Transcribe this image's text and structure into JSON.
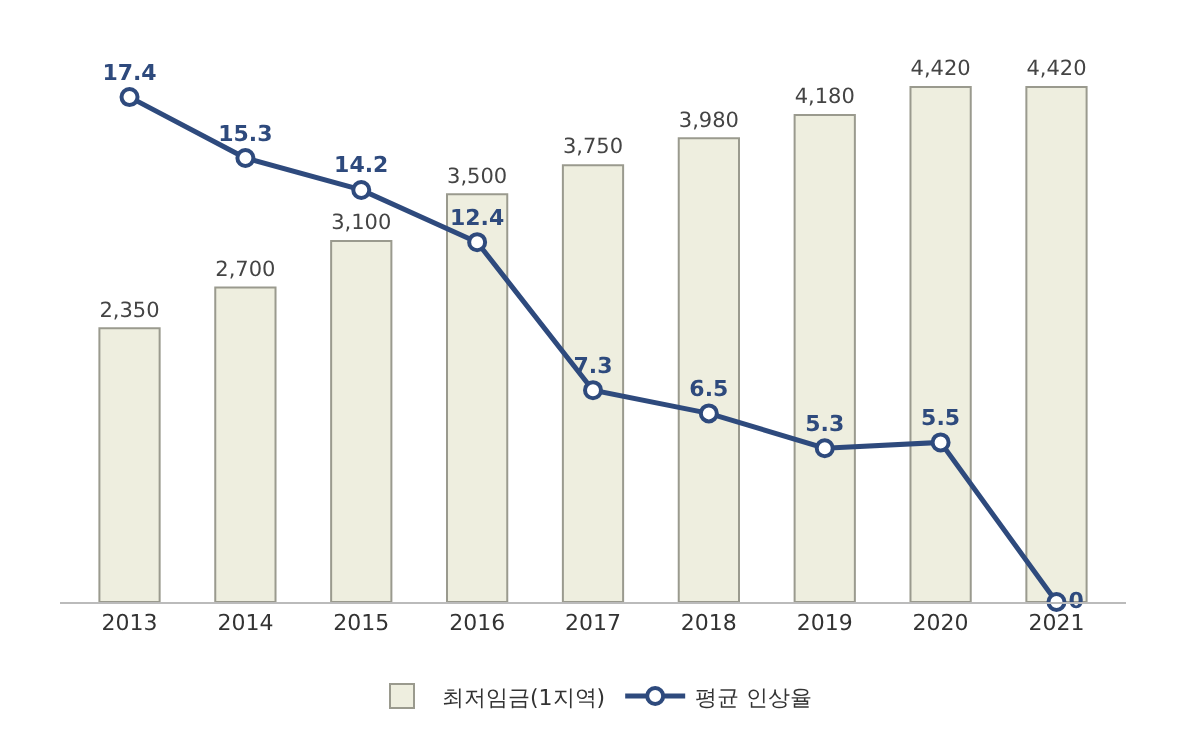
{
  "chart_data": {
    "type": "bar",
    "categories": [
      "2013",
      "2014",
      "2015",
      "2016",
      "2017",
      "2018",
      "2019",
      "2020",
      "2021"
    ],
    "series": [
      {
        "name": "최저임금(1지역)",
        "color": "#eeeedf",
        "value_labels": [
          "2,350",
          "2,700",
          "3,100",
          "3,500",
          "3,750",
          "3,980",
          "4,180",
          "4,420",
          "4,420"
        ],
        "values": [
          2350,
          2700,
          3100,
          3500,
          3750,
          3980,
          4180,
          4420,
          4420
        ]
      },
      {
        "name": "평균 인상율",
        "type": "line",
        "axis": "y2",
        "color": "#2e4a7d",
        "marker": "circle",
        "line_style": "solid",
        "values": [
          17.4,
          15.3,
          14.2,
          12.4,
          7.3,
          6.5,
          5.3,
          5.5,
          0
        ]
      }
    ],
    "data_labels": true,
    "tick_labels": "x",
    "legend": "bottom"
  }
}
